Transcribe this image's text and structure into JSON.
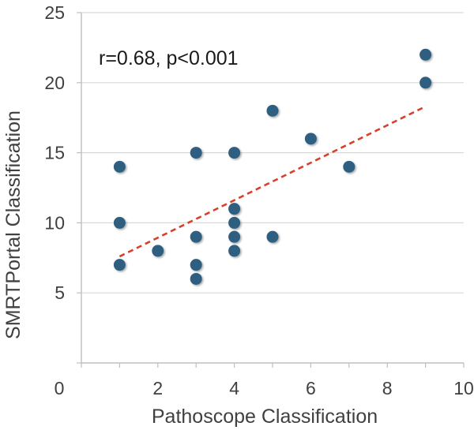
{
  "chart_data": {
    "type": "scatter",
    "xlabel": "Pathoscope Classification",
    "ylabel": "SMRTPortal Classification",
    "annotation": "r=0.68, p<0.001",
    "xlim": [
      0,
      10
    ],
    "ylim": [
      0,
      25
    ],
    "x_ticks": [
      0,
      2,
      4,
      6,
      8,
      10
    ],
    "y_ticks": [
      5,
      10,
      15,
      20,
      25
    ],
    "y_zero_label": "0",
    "grid": "horizontal",
    "points": [
      {
        "x": 1,
        "y": 7
      },
      {
        "x": 1,
        "y": 10
      },
      {
        "x": 1,
        "y": 14
      },
      {
        "x": 2,
        "y": 8
      },
      {
        "x": 3,
        "y": 6
      },
      {
        "x": 3,
        "y": 7
      },
      {
        "x": 3,
        "y": 9
      },
      {
        "x": 3,
        "y": 15
      },
      {
        "x": 4,
        "y": 8
      },
      {
        "x": 4,
        "y": 9
      },
      {
        "x": 4,
        "y": 10
      },
      {
        "x": 4,
        "y": 11
      },
      {
        "x": 4,
        "y": 15
      },
      {
        "x": 5,
        "y": 9
      },
      {
        "x": 5,
        "y": 18
      },
      {
        "x": 6,
        "y": 16
      },
      {
        "x": 7,
        "y": 14
      },
      {
        "x": 9,
        "y": 20
      },
      {
        "x": 9,
        "y": 22
      }
    ],
    "trendline": {
      "style": "dashed",
      "x": [
        1,
        9
      ],
      "y": [
        7.6,
        18.3
      ]
    },
    "colors": {
      "marker": "#2f5f80",
      "trendline": "#d9402b",
      "grid": "#d9d9d9",
      "axis": "#bfbfbf"
    }
  }
}
